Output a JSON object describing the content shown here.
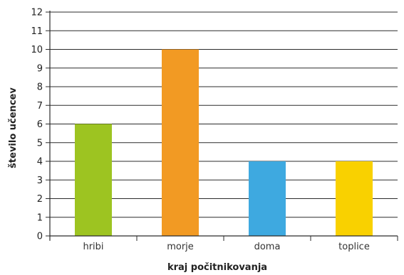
{
  "chart_data": {
    "type": "bar",
    "title": "",
    "xlabel": "kraj počitnikovanja",
    "ylabel": "število učencev",
    "categories": [
      "hribi",
      "morje",
      "doma",
      "toplice"
    ],
    "values": [
      6,
      10,
      4,
      4
    ],
    "colors": [
      "#9dc421",
      "#f29a23",
      "#3ea9e0",
      "#f9d100"
    ],
    "ylim": [
      0,
      12
    ],
    "yticks": [
      0,
      1,
      2,
      3,
      4,
      5,
      6,
      7,
      8,
      9,
      10,
      11,
      12
    ],
    "grid": true
  }
}
